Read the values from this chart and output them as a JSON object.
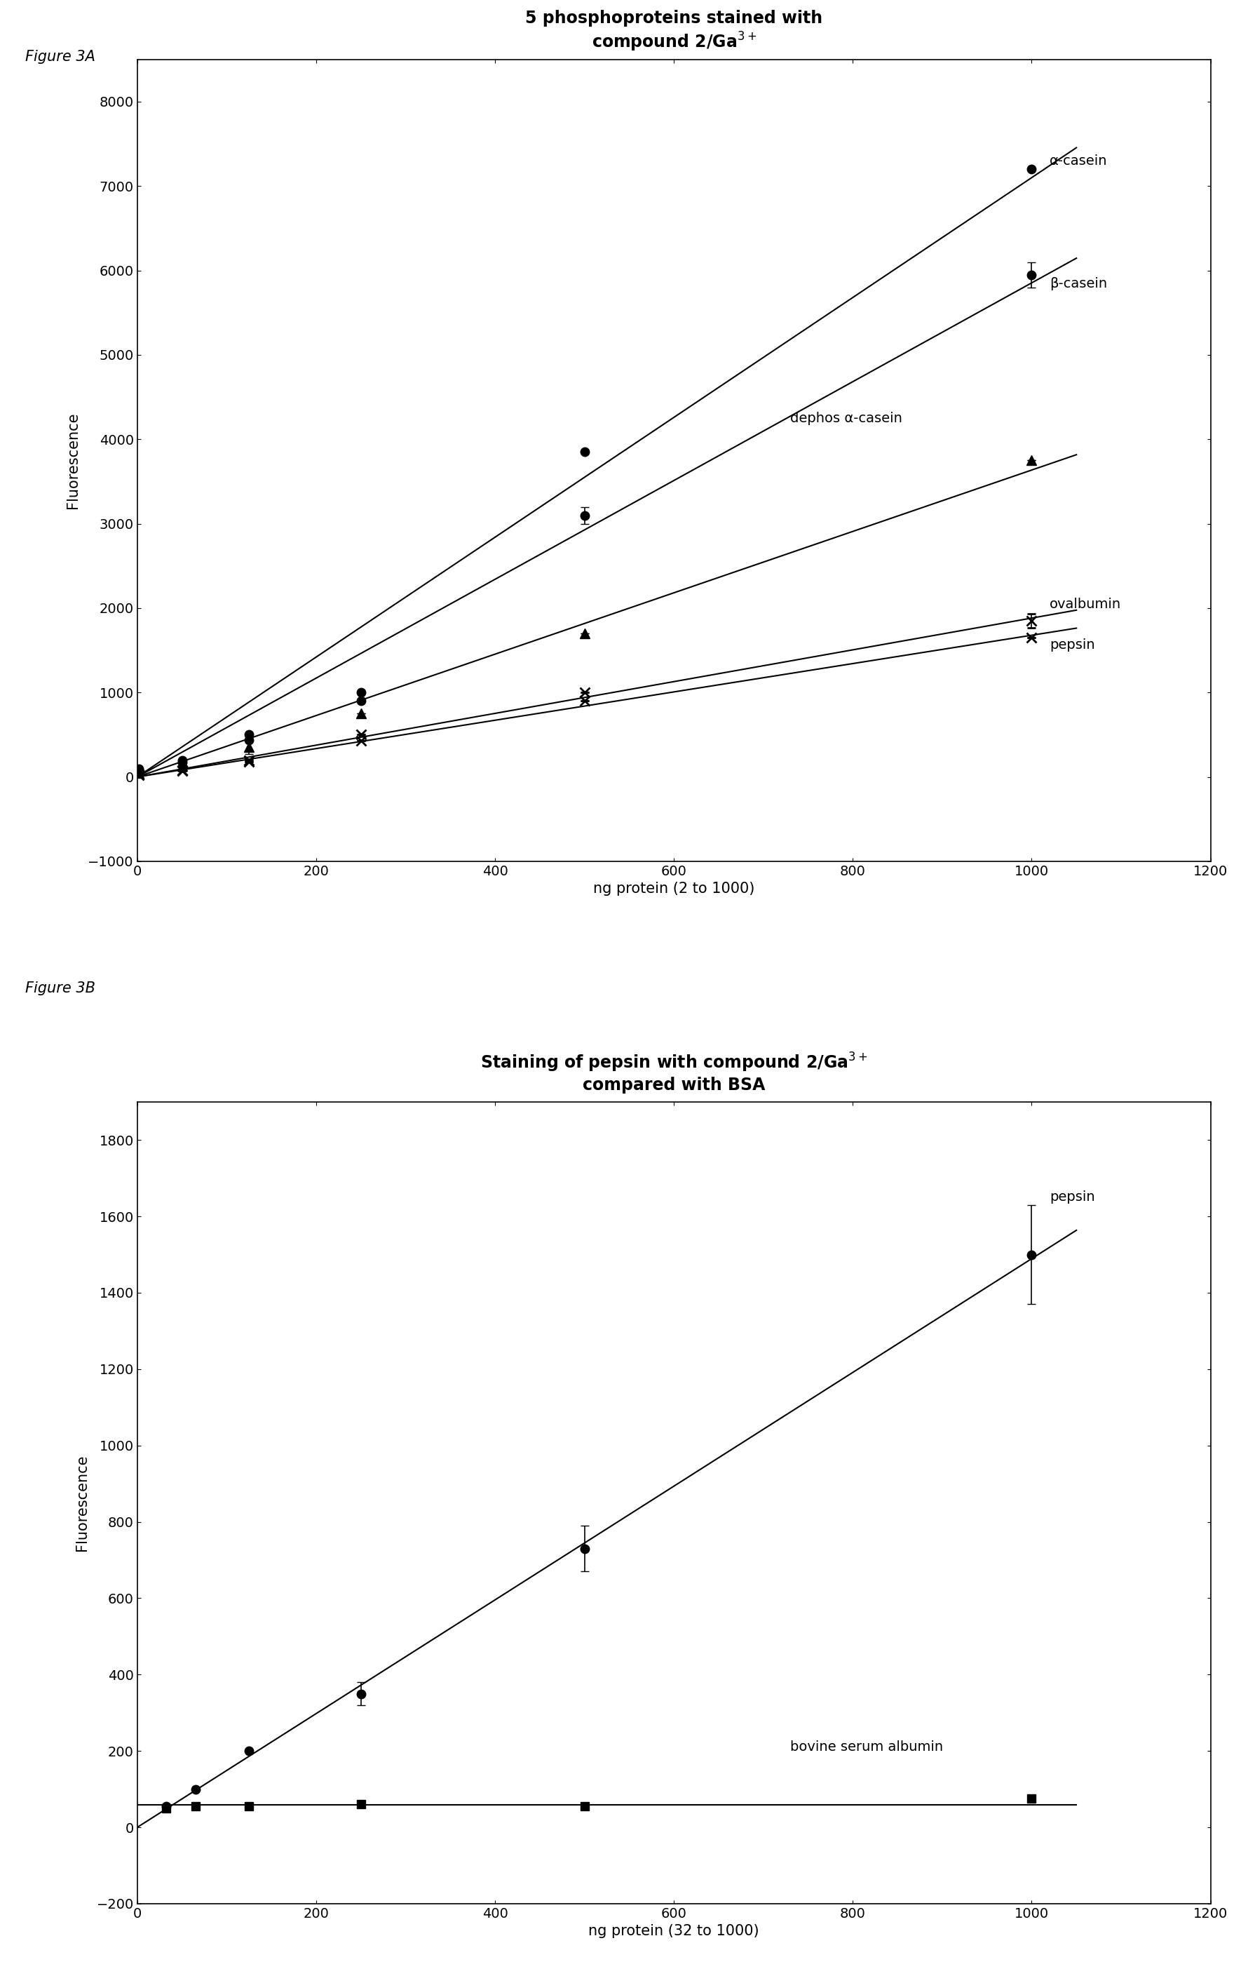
{
  "fig3A": {
    "title_line1": "5 phosphoproteins stained with",
    "title_line2": "compound 2/Ga$^{3+}$",
    "xlabel": "ng protein (2 to 1000)",
    "ylabel": "Fluorescence",
    "xlim": [
      0,
      1200
    ],
    "ylim": [
      -1000,
      8500
    ],
    "xticks": [
      0,
      200,
      400,
      600,
      800,
      1000,
      1200
    ],
    "yticks": [
      -1000,
      0,
      1000,
      2000,
      3000,
      4000,
      5000,
      6000,
      7000,
      8000
    ],
    "series": [
      {
        "key": "alpha_casein",
        "label": "α-casein",
        "x": [
          2,
          50,
          125,
          250,
          500,
          1000
        ],
        "y": [
          100,
          200,
          500,
          1000,
          3850,
          7200
        ],
        "yerr": [
          0,
          0,
          0,
          0,
          0,
          0
        ],
        "marker": "o",
        "markersize": 9,
        "linewidth": 1.5,
        "ann_x": 1020,
        "ann_y": 7250
      },
      {
        "key": "beta_casein",
        "label": "β-casein",
        "x": [
          2,
          50,
          125,
          250,
          500,
          1000
        ],
        "y": [
          80,
          170,
          440,
          900,
          3100,
          5950
        ],
        "yerr": [
          0,
          0,
          0,
          0,
          100,
          150
        ],
        "marker": "o",
        "markersize": 9,
        "linewidth": 1.5,
        "ann_x": 1020,
        "ann_y": 5800
      },
      {
        "key": "dephos_alpha_casein",
        "label": "dephos α-casein",
        "x": [
          2,
          50,
          125,
          250,
          500,
          1000
        ],
        "y": [
          50,
          130,
          350,
          750,
          1700,
          3750
        ],
        "yerr": [
          0,
          0,
          80,
          0,
          0,
          0
        ],
        "marker": "^",
        "markersize": 10,
        "linewidth": 1.5,
        "ann_x": 730,
        "ann_y": 4200
      },
      {
        "key": "ovalbumin",
        "label": "ovalbumin",
        "x": [
          2,
          50,
          125,
          250,
          500,
          1000
        ],
        "y": [
          30,
          80,
          200,
          500,
          1000,
          1850
        ],
        "yerr": [
          0,
          0,
          0,
          0,
          0,
          80
        ],
        "marker": "x",
        "markersize": 10,
        "linewidth": 1.5,
        "ann_x": 1020,
        "ann_y": 2000
      },
      {
        "key": "pepsin",
        "label": "pepsin",
        "x": [
          2,
          50,
          125,
          250,
          500,
          1000
        ],
        "y": [
          25,
          70,
          180,
          430,
          900,
          1650
        ],
        "yerr": [
          0,
          0,
          0,
          0,
          0,
          0
        ],
        "marker": "x",
        "markersize": 10,
        "linewidth": 1.5,
        "ann_x": 1020,
        "ann_y": 1520
      }
    ]
  },
  "fig3B": {
    "title_line1": "Staining of pepsin with compound 2/Ga$^{3+}$",
    "title_line2": "compared with BSA",
    "xlabel": "ng protein (32 to 1000)",
    "ylabel": "Fluorescence",
    "xlim": [
      0,
      1200
    ],
    "ylim": [
      -200,
      1900
    ],
    "xticks": [
      0,
      200,
      400,
      600,
      800,
      1000,
      1200
    ],
    "yticks": [
      -200,
      0,
      200,
      400,
      600,
      800,
      1000,
      1200,
      1400,
      1600,
      1800
    ],
    "series": [
      {
        "key": "pepsin",
        "label": "pepsin",
        "x": [
          32,
          65,
          125,
          250,
          500,
          1000
        ],
        "y": [
          55,
          100,
          200,
          350,
          730,
          1500
        ],
        "yerr": [
          0,
          0,
          0,
          30,
          60,
          130
        ],
        "marker": "o",
        "markersize": 9,
        "linewidth": 1.5,
        "ann_x": 1020,
        "ann_y": 1640
      },
      {
        "key": "bsa",
        "label": "bovine serum albumin",
        "x": [
          32,
          65,
          125,
          250,
          500,
          1000
        ],
        "y": [
          50,
          55,
          55,
          60,
          55,
          75
        ],
        "yerr": [
          0,
          0,
          0,
          0,
          0,
          0
        ],
        "marker": "s",
        "markersize": 8,
        "linewidth": 1.5,
        "ann_x": 730,
        "ann_y": 200
      }
    ]
  },
  "fig3A_label": "Figure 3A",
  "fig3B_label": "Figure 3B",
  "background_color": "#ffffff",
  "text_color": "#000000",
  "title_fontsize": 17,
  "label_fontsize": 15,
  "tick_fontsize": 14,
  "annotation_fontsize": 14,
  "figure_label_fontsize": 15
}
